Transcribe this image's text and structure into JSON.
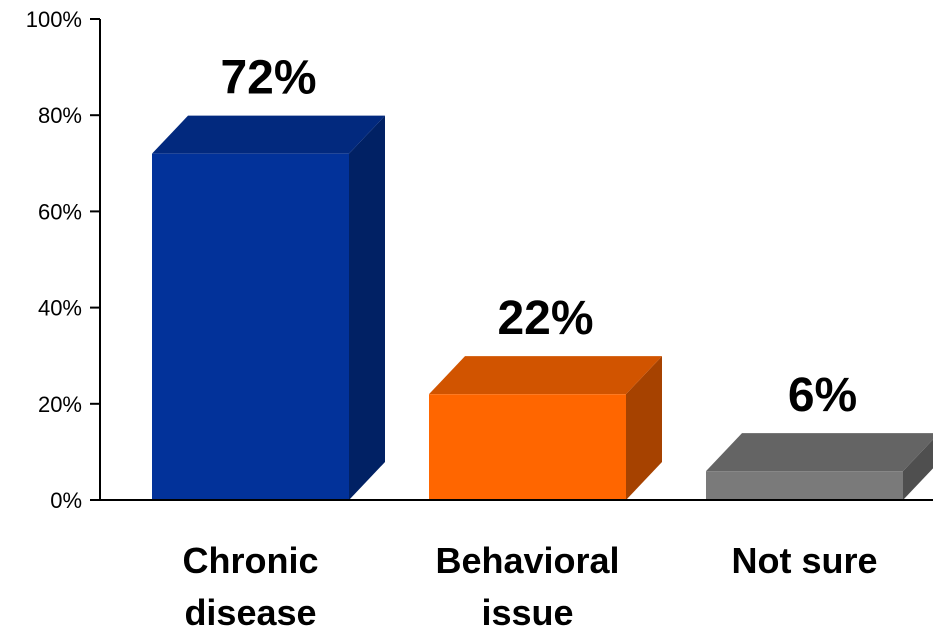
{
  "chart_data": {
    "type": "bar",
    "categories": [
      [
        "Chronic",
        "disease"
      ],
      [
        "Behavioral",
        "issue"
      ],
      [
        "Not sure"
      ]
    ],
    "values": [
      72,
      22,
      6
    ],
    "value_labels": [
      "72%",
      "22%",
      "6%"
    ],
    "colors": [
      "#02329A",
      "#FF6600",
      "#7A7A7A"
    ],
    "yticks": [
      "0%",
      "20%",
      "40%",
      "60%",
      "80%",
      "100%"
    ],
    "ylim": [
      0,
      100
    ],
    "grid": false,
    "legend": "none",
    "style": "3d-bar"
  }
}
